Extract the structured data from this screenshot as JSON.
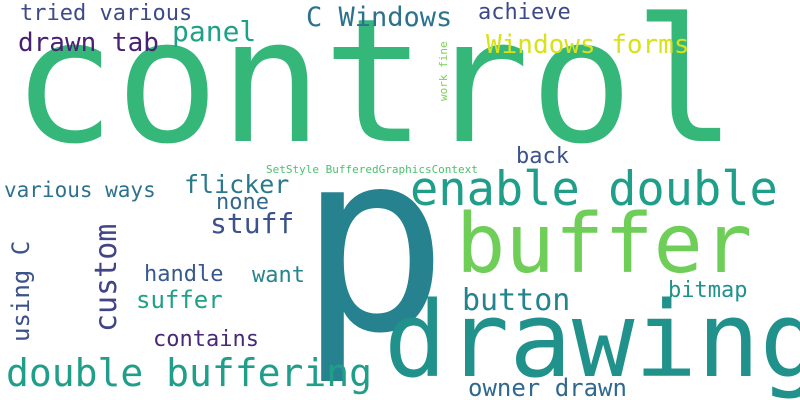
{
  "words": [
    {
      "text": "control",
      "color": "#35b779"
    },
    {
      "text": "p",
      "color": "#26828e"
    },
    {
      "text": "drawing",
      "color": "#21918c"
    },
    {
      "text": "buffer",
      "color": "#6ece58"
    },
    {
      "text": "enable double",
      "color": "#1f9e89"
    },
    {
      "text": "double buffering",
      "color": "#1f9e89"
    },
    {
      "text": "C Windows",
      "color": "#2c728e"
    },
    {
      "text": "Windows forms",
      "color": "#d8e219"
    },
    {
      "text": "drawn tab",
      "color": "#482173"
    },
    {
      "text": "tried various",
      "color": "#3e4a89"
    },
    {
      "text": "achieve",
      "color": "#3e4989"
    },
    {
      "text": "panel",
      "color": "#1fa187"
    },
    {
      "text": "custom",
      "color": "#414487"
    },
    {
      "text": "using C",
      "color": "#3b528b"
    },
    {
      "text": "various ways",
      "color": "#2c728e"
    },
    {
      "text": "flicker",
      "color": "#2a788e"
    },
    {
      "text": "none",
      "color": "#31688e"
    },
    {
      "text": "stuff",
      "color": "#3b528b"
    },
    {
      "text": "back",
      "color": "#3b528b"
    },
    {
      "text": "handle",
      "color": "#38598c"
    },
    {
      "text": "want",
      "color": "#25858e"
    },
    {
      "text": "suffer",
      "color": "#1fa187"
    },
    {
      "text": "button",
      "color": "#25838e"
    },
    {
      "text": "bitmap",
      "color": "#21918c"
    },
    {
      "text": "contains",
      "color": "#482878"
    },
    {
      "text": "owner drawn",
      "color": "#31688e"
    },
    {
      "text": "SetStyle BufferedGraphicsContext",
      "color": "#4ac16d"
    },
    {
      "text": "work fine",
      "color": "#7ad151"
    }
  ]
}
